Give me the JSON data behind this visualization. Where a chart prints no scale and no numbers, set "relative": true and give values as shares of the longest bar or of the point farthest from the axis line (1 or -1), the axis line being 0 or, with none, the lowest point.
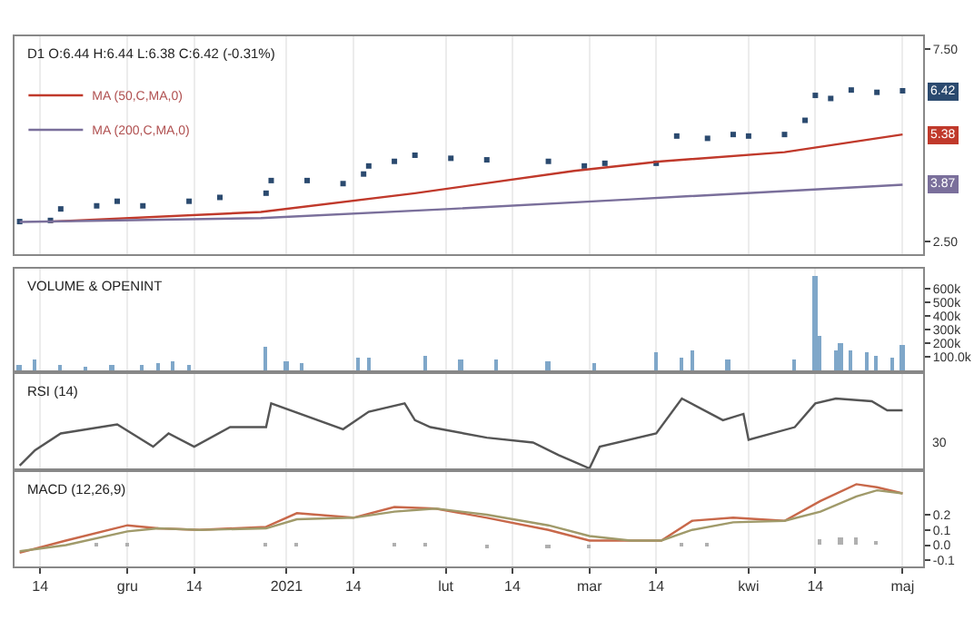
{
  "chart_data": [
    {
      "type": "scatter",
      "title": "D1 O:6.44 H:6.44 L:6.38 C:6.42 (-0.31%)",
      "grid": "x",
      "legend": "top left",
      "tick_labels": "y",
      "x": [
        "2020-11-10",
        "2020-11-16",
        "2020-11-18",
        "2020-11-25",
        "2020-11-29",
        "2020-12-04",
        "2020-12-13",
        "2020-12-19",
        "2020-12-28",
        "2020-12-29",
        "2021-01-05",
        "2021-01-12",
        "2021-01-16",
        "2021-01-17",
        "2021-01-22",
        "2021-01-26",
        "2021-02-02",
        "2021-02-09",
        "2021-02-21",
        "2021-02-28",
        "2021-03-04",
        "2021-03-14",
        "2021-03-18",
        "2021-03-24",
        "2021-03-29",
        "2021-04-01",
        "2021-04-08",
        "2021-04-12",
        "2021-04-14",
        "2021-04-17",
        "2021-04-21",
        "2021-04-26",
        "2021-05-01"
      ],
      "series": [
        {
          "color": "#2b4a6f",
          "marker": "square",
          "values": [
            3.01,
            3.04,
            3.34,
            3.42,
            3.54,
            3.42,
            3.54,
            3.64,
            3.75,
            4.08,
            4.08,
            4.0,
            4.25,
            4.46,
            4.58,
            4.74,
            4.66,
            4.62,
            4.58,
            4.46,
            4.53,
            4.53,
            5.24,
            5.18,
            5.28,
            5.24,
            5.28,
            5.65,
            6.3,
            6.22,
            6.44,
            6.38,
            6.42
          ]
        },
        {
          "type": "line",
          "name": "MA (50,C,MA,0)",
          "color": "#c0392b",
          "x": [
            "2020-11-16",
            "2020-12-27",
            "2021-01-26",
            "2021-02-26",
            "2021-03-15",
            "2021-04-08",
            "2021-05-01"
          ],
          "values": [
            3.01,
            3.26,
            3.75,
            4.33,
            4.58,
            4.82,
            5.28
          ]
        },
        {
          "type": "line",
          "name": "MA (200,C,MA,0)",
          "color": "#7a6f9b",
          "x": [
            "2020-11-10",
            "2020-12-27",
            "2021-02-02",
            "2021-03-09",
            "2021-05-01"
          ],
          "values": [
            3.0,
            3.1,
            3.34,
            3.59,
            3.97
          ]
        }
      ],
      "xlim": [
        "2020-11-09",
        "2021-05-05"
      ],
      "xticks": [
        {
          "value": "2020-11-14",
          "label": null
        },
        {
          "value": "2020-12-01",
          "label": null
        },
        {
          "value": "2020-12-14",
          "label": null
        },
        {
          "value": "2021-01-01",
          "label": null
        },
        {
          "value": "2021-01-14",
          "label": null
        },
        {
          "value": "2021-02-01",
          "label": null
        },
        {
          "value": "2021-02-14",
          "label": null
        },
        {
          "value": "2021-03-01",
          "label": null
        },
        {
          "value": "2021-03-14",
          "label": null
        },
        {
          "value": "2021-04-01",
          "label": null
        },
        {
          "value": "2021-04-14",
          "label": null
        },
        {
          "value": "2021-05-01",
          "label": null
        }
      ],
      "ylim": [
        2.16,
        7.84
      ],
      "yticks": [
        {
          "value": 2.5,
          "label": "2.50"
        },
        {
          "value": 7.5,
          "label": "7.50"
        }
      ],
      "annotations": [
        "6.42",
        "5.38",
        "3.87"
      ]
    },
    {
      "type": "bar",
      "title": "VOLUME & OPENINT",
      "grid": "x",
      "tick_labels": "y",
      "x": [
        "2020-11-10",
        "2020-11-13",
        "2020-11-18",
        "2020-11-23",
        "2020-11-28",
        "2020-12-04",
        "2020-12-07",
        "2020-12-10",
        "2020-12-13",
        "2020-12-28",
        "2021-01-01",
        "2021-01-04",
        "2021-01-15",
        "2021-01-17",
        "2021-01-28",
        "2021-02-04",
        "2021-02-11",
        "2021-02-21",
        "2021-03-02",
        "2021-03-14",
        "2021-03-19",
        "2021-03-21",
        "2021-03-28",
        "2021-04-10",
        "2021-04-14",
        "2021-04-15",
        "2021-04-18",
        "2021-04-19",
        "2021-04-21",
        "2021-04-24",
        "2021-04-26",
        "2021-04-29",
        "2021-05-01"
      ],
      "series": [
        {
          "color": "#7fa7c9",
          "values": [
            40000,
            80000,
            40000,
            30000,
            40000,
            40000,
            50000,
            70000,
            40000,
            180000,
            70000,
            50000,
            100000,
            90000,
            110000,
            80000,
            80000,
            70000,
            50000,
            130000,
            100000,
            150000,
            80000,
            80000,
            690000,
            250000,
            150000,
            200000,
            150000,
            140000,
            110000,
            100000,
            190000
          ]
        }
      ],
      "xlim": [
        "2020-11-09",
        "2021-05-05"
      ],
      "xticks": [
        {
          "value": "2020-11-14",
          "label": null
        },
        {
          "value": "2020-12-01",
          "label": null
        },
        {
          "value": "2020-12-14",
          "label": null
        },
        {
          "value": "2021-01-01",
          "label": null
        },
        {
          "value": "2021-01-14",
          "label": null
        },
        {
          "value": "2021-02-01",
          "label": null
        },
        {
          "value": "2021-02-14",
          "label": null
        },
        {
          "value": "2021-03-01",
          "label": null
        },
        {
          "value": "2021-03-14",
          "label": null
        },
        {
          "value": "2021-04-01",
          "label": null
        },
        {
          "value": "2021-04-14",
          "label": null
        },
        {
          "value": "2021-05-01",
          "label": null
        }
      ],
      "ylim": [
        0,
        750000
      ],
      "yticks": [
        {
          "value": 100000,
          "label": "100.0k"
        },
        {
          "value": 200000,
          "label": "200k"
        },
        {
          "value": 300000,
          "label": "300k"
        },
        {
          "value": 400000,
          "label": "400k"
        },
        {
          "value": 500000,
          "label": "500k"
        },
        {
          "value": 600000,
          "label": "600k"
        }
      ]
    },
    {
      "type": "line",
      "title": "RSI (14)",
      "relative": true,
      "grid": "x",
      "tick_labels": false,
      "x": [
        "2020-11-10",
        "2020-11-13",
        "2020-11-18",
        "2020-11-29",
        "2020-12-06",
        "2020-12-09",
        "2020-12-14",
        "2020-12-21",
        "2020-12-28",
        "2020-12-29",
        "2021-01-12",
        "2021-01-17",
        "2021-01-24",
        "2021-01-26",
        "2021-01-29",
        "2021-02-09",
        "2021-02-18",
        "2021-02-23",
        "2021-03-01",
        "2021-03-03",
        "2021-03-14",
        "2021-03-19",
        "2021-03-27",
        "2021-03-31",
        "2021-04-01",
        "2021-04-10",
        "2021-04-14",
        "2021-04-18",
        "2021-04-25",
        "2021-04-28",
        "2021-05-01"
      ],
      "series": [
        {
          "color": "#555555",
          "values": [
            0.04,
            0.26,
            0.5,
            0.63,
            0.31,
            0.5,
            0.31,
            0.59,
            0.59,
            0.93,
            0.56,
            0.81,
            0.93,
            0.69,
            0.59,
            0.44,
            0.37,
            0.19,
            0,
            0.31,
            0.5,
            1,
            0.69,
            0.78,
            0.41,
            0.59,
            0.93,
            1,
            0.96,
            0.83,
            0.83
          ]
        }
      ],
      "xlim": [
        "2020-11-09",
        "2021-05-05"
      ],
      "xticks": [
        {
          "value": "2020-11-14",
          "label": null
        },
        {
          "value": "2020-12-01",
          "label": null
        },
        {
          "value": "2020-12-14",
          "label": null
        },
        {
          "value": "2021-01-01",
          "label": null
        },
        {
          "value": "2021-01-14",
          "label": null
        },
        {
          "value": "2021-02-01",
          "label": null
        },
        {
          "value": "2021-02-14",
          "label": null
        },
        {
          "value": "2021-03-01",
          "label": null
        },
        {
          "value": "2021-03-14",
          "label": null
        },
        {
          "value": "2021-04-01",
          "label": null
        },
        {
          "value": "2021-04-14",
          "label": null
        },
        {
          "value": "2021-05-01",
          "label": null
        }
      ],
      "annotations": [
        "30"
      ]
    },
    {
      "type": "line",
      "title": "MACD (12,26,9)",
      "grid": "x",
      "x": [
        "2020-11-10",
        "2020-11-19",
        "2020-12-01",
        "2020-12-07",
        "2020-12-15",
        "2020-12-28",
        "2021-01-03",
        "2021-01-14",
        "2021-01-22",
        "2021-01-30",
        "2021-02-09",
        "2021-02-21",
        "2021-03-01",
        "2021-03-09",
        "2021-03-15",
        "2021-03-21",
        "2021-03-29",
        "2021-04-08",
        "2021-04-15",
        "2021-04-22",
        "2021-04-26",
        "2021-05-01"
      ],
      "series": [
        {
          "color": "#c8684a",
          "values": [
            -0.05,
            0.03,
            0.13,
            0.11,
            0.1,
            0.12,
            0.21,
            0.18,
            0.25,
            0.24,
            0.18,
            0.1,
            0.03,
            0.03,
            0.03,
            0.16,
            0.18,
            0.16,
            0.29,
            0.4,
            0.38,
            0.34
          ]
        },
        {
          "color": "#a09a6a",
          "values": [
            -0.04,
            0.0,
            0.09,
            0.11,
            0.1,
            0.11,
            0.17,
            0.18,
            0.22,
            0.24,
            0.2,
            0.13,
            0.06,
            0.03,
            0.03,
            0.1,
            0.15,
            0.16,
            0.22,
            0.32,
            0.36,
            0.34
          ]
        },
        {
          "type": "bar",
          "color": "#b0b0b0",
          "x": [
            "2020-11-25",
            "2020-12-01",
            "2020-12-28",
            "2021-01-03",
            "2021-01-22",
            "2021-01-28",
            "2021-02-09",
            "2021-02-21",
            "2021-03-01",
            "2021-03-19",
            "2021-03-24",
            "2021-04-15",
            "2021-04-19",
            "2021-04-22",
            "2021-04-26"
          ],
          "values": [
            0.02,
            0.02,
            0.02,
            0.02,
            0.01,
            0.01,
            -0.01,
            -0.01,
            -0.01,
            0.02,
            0.02,
            0.04,
            0.05,
            0.05,
            0.03
          ]
        }
      ],
      "xlim": [
        "2020-11-09",
        "2021-05-05"
      ],
      "xticks": [
        {
          "value": "2020-11-14",
          "label": "14"
        },
        {
          "value": "2020-12-01",
          "label": "gru"
        },
        {
          "value": "2020-12-14",
          "label": "14"
        },
        {
          "value": "2021-01-01",
          "label": "2021"
        },
        {
          "value": "2021-01-14",
          "label": "14"
        },
        {
          "value": "2021-02-01",
          "label": "lut"
        },
        {
          "value": "2021-02-14",
          "label": "14"
        },
        {
          "value": "2021-03-01",
          "label": "mar"
        },
        {
          "value": "2021-03-14",
          "label": "14"
        },
        {
          "value": "2021-04-01",
          "label": "kwi"
        },
        {
          "value": "2021-04-14",
          "label": "14"
        },
        {
          "value": "2021-05-01",
          "label": "maj"
        }
      ],
      "ylim": [
        -0.14,
        0.48
      ],
      "yticks": [
        {
          "value": -0.1,
          "label": "-0.1"
        },
        {
          "value": 0,
          "label": "0.0"
        },
        {
          "value": 0.1,
          "label": "0.1"
        },
        {
          "value": 0.2,
          "label": "0.2"
        }
      ]
    }
  ]
}
